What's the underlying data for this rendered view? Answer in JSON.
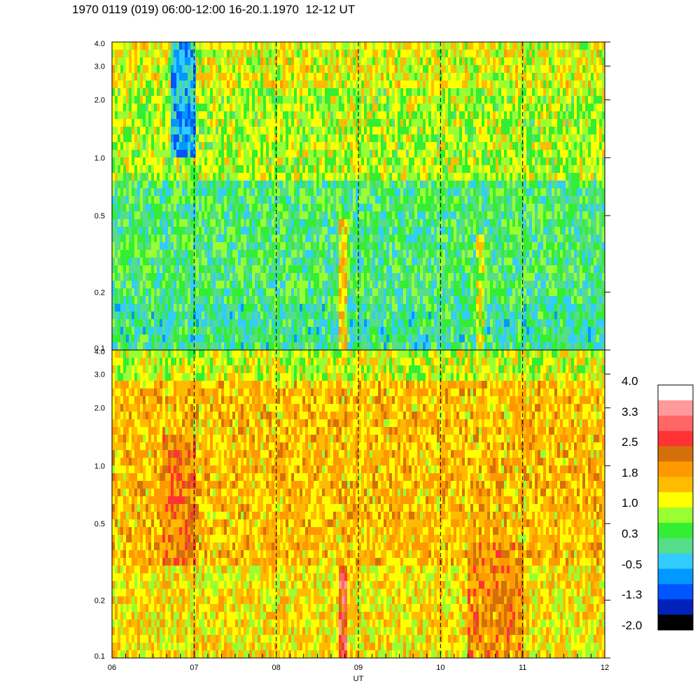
{
  "title": "1970 0119 (019) 06:00-12:00 16-20.1.1970  12-12 UT",
  "chart_data": {
    "type": "heatmap",
    "xlabel": "UT",
    "x_ticks": [
      "06",
      "07",
      "08",
      "09",
      "10",
      "11",
      "12"
    ],
    "x_range": [
      6,
      12
    ],
    "y_scale": "log",
    "y_range": [
      0.1,
      4.0
    ],
    "y_ticks": [
      "0.1",
      "0.2",
      "0.5",
      "1.0",
      "2.0",
      "3.0",
      "4.0"
    ],
    "y_tick_values": [
      0.1,
      0.2,
      0.5,
      1.0,
      2.0,
      3.0,
      4.0
    ],
    "dashed_hour_lines": [
      7,
      8,
      9,
      10,
      11
    ],
    "panels": [
      {
        "name": "upper",
        "background_level": 0.3,
        "features": [
          {
            "x_start": 8.75,
            "x_end": 8.83,
            "y_min": 0.1,
            "y_max": 0.5,
            "level": 1.5
          },
          {
            "x_start": 10.4,
            "x_end": 10.5,
            "y_min": 0.1,
            "y_max": 0.4,
            "level": 1.0
          },
          {
            "x_start": 6.7,
            "x_end": 7.0,
            "y_min": 1.0,
            "y_max": 4.0,
            "level": -0.5
          }
        ]
      },
      {
        "name": "lower",
        "background_level": 1.6,
        "features": [
          {
            "x_start": 8.75,
            "x_end": 8.83,
            "y_min": 0.1,
            "y_max": 0.3,
            "level": 2.7
          },
          {
            "x_start": 6.6,
            "x_end": 7.0,
            "y_min": 0.3,
            "y_max": 1.5,
            "level": 2.1
          },
          {
            "x_start": 10.3,
            "x_end": 11.0,
            "y_min": 0.1,
            "y_max": 0.4,
            "level": 2.0
          }
        ]
      }
    ],
    "colorbar": {
      "labels": [
        "4.0",
        "3.3",
        "2.5",
        "1.8",
        "1.0",
        "0.3",
        "-0.5",
        "-1.3",
        "-2.0"
      ],
      "colors_top_to_bottom": [
        "#ffffff",
        "#ff9a9a",
        "#ff6666",
        "#ff3333",
        "#d4700a",
        "#ff9900",
        "#ffbb00",
        "#ffff00",
        "#99ff33",
        "#33ee33",
        "#55dd88",
        "#33ccff",
        "#0099ff",
        "#0055ff",
        "#0022bb",
        "#000000"
      ]
    }
  }
}
